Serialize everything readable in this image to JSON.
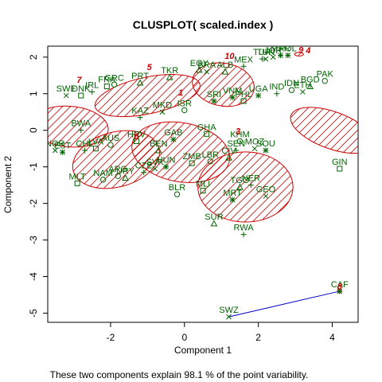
{
  "chart_data": {
    "type": "scatter",
    "title": "CLUSPLOT( scaled.index )",
    "xlabel": "Component 1",
    "ylabel": "Component 2",
    "subtitle": "These two components explain 98.1 % of the point variability.",
    "xlim": [
      -3.7,
      4.7
    ],
    "ylim": [
      -5.25,
      2.3
    ],
    "x_ticks": [
      -2,
      0,
      2,
      4
    ],
    "y_ticks": [
      -5,
      -4,
      -3,
      -2,
      -1,
      0,
      1,
      2
    ],
    "colors": {
      "points": "#006400",
      "labels": "#006400",
      "ellipse": "#cc0000",
      "hatch": "#cc0000",
      "cluster_label": "#cc0000",
      "line": "#0000cc",
      "axis": "#000000"
    },
    "clusters": [
      {
        "label": "1",
        "cx": -0.1,
        "cy": -0.6,
        "rx": 0.8,
        "ry": 1.35,
        "angle": 80,
        "label_x": -0.1,
        "label_y": 0.95
      },
      {
        "label": "3",
        "cx": 1.65,
        "cy": -1.55,
        "rx": 0.95,
        "ry": 1.3,
        "angle": 90,
        "label_x": 1.45,
        "label_y": -0.1
      },
      {
        "label": "5",
        "cx": -1.0,
        "cy": 0.95,
        "rx": 1.45,
        "ry": 0.5,
        "angle": 12,
        "label_x": -0.95,
        "label_y": 1.65
      },
      {
        "label": "6",
        "cx": -1.85,
        "cy": -0.8,
        "rx": 1.2,
        "ry": 0.75,
        "angle": 15,
        "label_x": -1.3,
        "label_y": -0.25
      },
      {
        "label": "7",
        "cx": -3.1,
        "cy": 0.1,
        "rx": 0.55,
        "ry": 1.05,
        "angle": 85,
        "label_x": -2.85,
        "label_y": 1.3
      },
      {
        "label": "10",
        "cx": 1.05,
        "cy": 1.25,
        "rx": 0.58,
        "ry": 0.85,
        "angle": 80,
        "label_x": 1.22,
        "label_y": 1.95
      },
      {
        "label": "8",
        "cx": 4.2,
        "cy": -4.4,
        "rx": 0.05,
        "ry": 0.05,
        "angle": 0,
        "label_x": 4.2,
        "label_y": -4.35
      },
      {
        "label": "9",
        "cx": 3.1,
        "cy": 2.08,
        "rx": 0.12,
        "ry": 0.05,
        "angle": 0,
        "label_x": 3.15,
        "label_y": 2.12
      },
      {
        "label": "4",
        "cx": 4.0,
        "cy": 0.0,
        "rx": 0.5,
        "ry": 1.2,
        "angle": 70,
        "label_x": 3.35,
        "label_y": 2.1
      }
    ],
    "points": [
      {
        "label": "MEX",
        "x": 1.6,
        "y": 1.75
      },
      {
        "label": "TUN",
        "x": 2.2,
        "y": 1.95
      },
      {
        "label": "POL",
        "x": 2.8,
        "y": 2.05
      },
      {
        "label": "GIN",
        "x": 4.2,
        "y": -1.05
      },
      {
        "label": "PAK",
        "x": 3.8,
        "y": 1.35
      },
      {
        "label": "ALB",
        "x": 1.1,
        "y": 1.6
      },
      {
        "label": "KAZ",
        "x": -1.2,
        "y": 0.35
      },
      {
        "label": "MKD",
        "x": -0.6,
        "y": 0.5
      },
      {
        "label": "GAB",
        "x": -0.3,
        "y": -0.25
      },
      {
        "label": "GHA",
        "x": 0.6,
        "y": -0.1
      },
      {
        "label": "KHM",
        "x": 1.5,
        "y": -0.3
      },
      {
        "label": "BEN",
        "x": -0.7,
        "y": -0.55
      },
      {
        "label": "BWA",
        "x": -2.8,
        "y": 0.0
      },
      {
        "label": "SWE",
        "x": -3.2,
        "y": 0.95
      },
      {
        "label": "SOU",
        "x": 2.2,
        "y": -0.55
      },
      {
        "label": "MLT",
        "x": -2.9,
        "y": -1.45
      },
      {
        "label": "NAM",
        "x": -2.2,
        "y": -1.35
      },
      {
        "label": "TGO",
        "x": 1.5,
        "y": -1.55
      },
      {
        "label": "NER",
        "x": 1.8,
        "y": -1.5
      },
      {
        "label": "GEO",
        "x": 2.2,
        "y": -1.8
      },
      {
        "label": "MRT",
        "x": 1.3,
        "y": -1.9
      },
      {
        "label": "MLI",
        "x": 0.5,
        "y": -1.65
      },
      {
        "label": "BLR",
        "x": -0.2,
        "y": -1.75
      },
      {
        "label": "SUR",
        "x": 0.8,
        "y": -2.55
      },
      {
        "label": "RWA",
        "x": 1.6,
        "y": -2.85
      },
      {
        "label": "SWZ",
        "x": 1.2,
        "y": -5.1
      },
      {
        "label": "CAF",
        "x": 4.2,
        "y": -4.4
      },
      {
        "label": "HRV",
        "x": -1.3,
        "y": -0.3
      },
      {
        "label": "AUS",
        "x": -2.0,
        "y": -0.4
      },
      {
        "label": "TKR",
        "x": -0.4,
        "y": 1.45
      },
      {
        "label": "CHL",
        "x": -2.7,
        "y": -0.55
      },
      {
        "label": "BRA",
        "x": 0.6,
        "y": 1.6
      },
      {
        "label": "SRI",
        "x": 0.8,
        "y": 0.8
      },
      {
        "label": "DNK",
        "x": -2.8,
        "y": 0.95
      },
      {
        "label": "ISR",
        "x": 0.0,
        "y": 0.55
      },
      {
        "label": "EGY",
        "x": 0.4,
        "y": 1.65
      },
      {
        "label": "IND",
        "x": 2.5,
        "y": 1.0
      },
      {
        "label": "ETH",
        "x": 3.2,
        "y": 1.05
      },
      {
        "label": "UGA",
        "x": 2.0,
        "y": 0.95
      },
      {
        "label": "FRA",
        "x": -2.1,
        "y": 1.2
      },
      {
        "label": "GRC",
        "x": -1.9,
        "y": 1.25
      },
      {
        "label": "PRT",
        "x": -1.2,
        "y": 1.3
      },
      {
        "label": "IRL",
        "x": -2.5,
        "y": 1.05
      },
      {
        "label": "NOR",
        "x": -3.5,
        "y": -0.55
      },
      {
        "label": "EST",
        "x": -3.3,
        "y": -0.6
      },
      {
        "label": "LVA",
        "x": -2.4,
        "y": -0.5
      },
      {
        "label": "ARG",
        "x": -1.8,
        "y": -1.25
      },
      {
        "label": "URY",
        "x": -1.6,
        "y": -1.3
      },
      {
        "label": "CZE",
        "x": -1.1,
        "y": -1.15
      },
      {
        "label": "SVK",
        "x": -0.8,
        "y": -1.05
      },
      {
        "label": "HUN",
        "x": -0.5,
        "y": -1.0
      },
      {
        "label": "ZMB",
        "x": 0.2,
        "y": -0.9
      },
      {
        "label": "LBR",
        "x": 0.7,
        "y": -0.85
      },
      {
        "label": "CIV",
        "x": 1.2,
        "y": -0.75
      },
      {
        "label": "SEN",
        "x": 1.4,
        "y": -0.55
      },
      {
        "label": "MOZ",
        "x": 1.9,
        "y": -0.5
      },
      {
        "label": "VNM",
        "x": 1.3,
        "y": 0.9
      },
      {
        "label": "PHL",
        "x": 1.6,
        "y": 0.8
      },
      {
        "label": "IDN",
        "x": 2.9,
        "y": 1.1
      },
      {
        "label": "BGD",
        "x": 3.4,
        "y": 1.2
      },
      {
        "label": "TUR",
        "x": 2.1,
        "y": 1.95
      },
      {
        "label": "JOR",
        "x": 2.4,
        "y": 2.0
      },
      {
        "label": "MAR",
        "x": 2.6,
        "y": 2.05
      }
    ],
    "segments": [
      {
        "x1": 1.2,
        "y1": -5.1,
        "x2": 4.2,
        "y2": -4.4
      }
    ],
    "grid": false,
    "legend": "none"
  }
}
